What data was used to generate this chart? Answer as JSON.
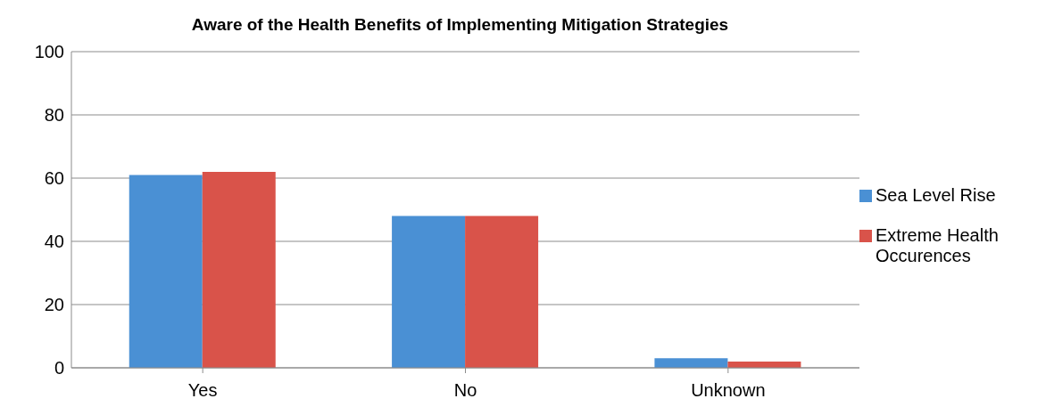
{
  "chart_data": {
    "type": "bar",
    "title": "Aware of the Health Benefits of Implementing Mitigation Strategies",
    "categories": [
      "Yes",
      "No",
      "Unknown"
    ],
    "series": [
      {
        "name": "Sea Level Rise",
        "color": "#4a90d4",
        "values": [
          61,
          48,
          3
        ]
      },
      {
        "name": "Extreme Health Occurences",
        "color": "#d9534a",
        "values": [
          62,
          48,
          2
        ]
      }
    ],
    "ylim": [
      0,
      100
    ],
    "yticks": [
      0,
      20,
      40,
      60,
      80,
      100
    ],
    "grid": "y",
    "legend": "right"
  }
}
